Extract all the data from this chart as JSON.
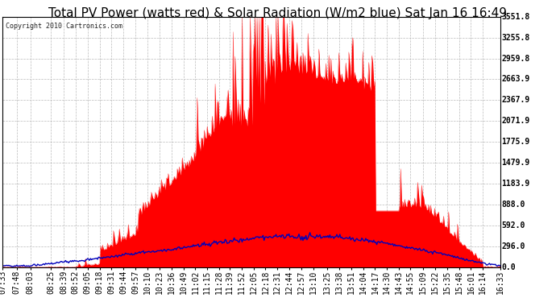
{
  "title": "Total PV Power (watts red) & Solar Radiation (W/m2 blue) Sat Jan 16 16:49",
  "copyright": "Copyright 2010 Cartronics.com",
  "bg_color": "#ffffff",
  "grid_color": "#bbbbbb",
  "right_yticks": [
    0.0,
    296.0,
    592.0,
    888.0,
    1183.9,
    1479.9,
    1775.9,
    2071.9,
    2367.9,
    2663.9,
    2959.8,
    3255.8,
    3551.8
  ],
  "x_labels": [
    "07:33",
    "07:48",
    "08:03",
    "08:25",
    "08:39",
    "08:52",
    "09:05",
    "09:18",
    "09:31",
    "09:44",
    "09:57",
    "10:10",
    "10:23",
    "10:36",
    "10:49",
    "11:02",
    "11:15",
    "11:28",
    "11:39",
    "11:52",
    "12:05",
    "12:18",
    "12:31",
    "12:44",
    "12:57",
    "13:10",
    "13:25",
    "13:38",
    "13:51",
    "14:04",
    "14:17",
    "14:30",
    "14:43",
    "14:55",
    "15:09",
    "15:22",
    "15:35",
    "15:48",
    "16:01",
    "16:14",
    "16:33"
  ],
  "pv_color": "#ff0000",
  "solar_color": "#0000bb",
  "title_fontsize": 11,
  "tick_fontsize": 7,
  "ymax": 3551.8
}
